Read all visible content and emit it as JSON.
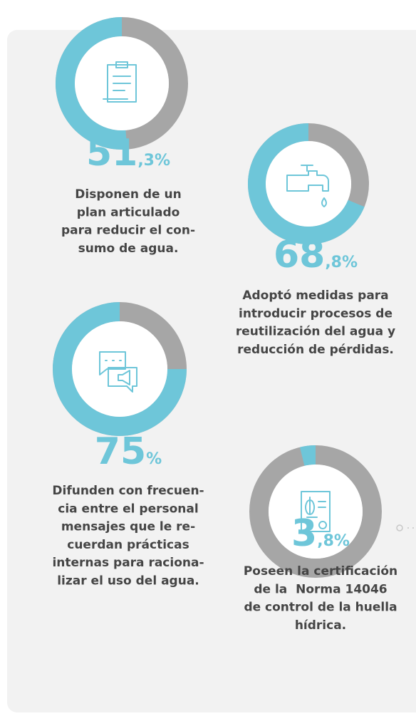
{
  "chart_data": [
    {
      "type": "donut",
      "value": 51.3,
      "value_label": "51,3%",
      "color": "#6ec6d9",
      "rest_color": "#a6a6a6",
      "caption": [
        "Disponen de un",
        "plan articulado",
        "para reducir el con-",
        "sumo de agua."
      ]
    },
    {
      "type": "donut",
      "value": 68.8,
      "value_label": "68,8%",
      "color": "#6ec6d9",
      "rest_color": "#a6a6a6",
      "caption": [
        "Adoptó medidas para",
        "introducir procesos de",
        "reutilización del agua y",
        "reducción de pérdidas."
      ]
    },
    {
      "type": "donut",
      "value": 75,
      "value_label": "75%",
      "color": "#6ec6d9",
      "rest_color": "#a6a6a6",
      "caption": [
        "Difunden con frecuen-",
        "cia entre el personal",
        "mensajes que le re-",
        "cuerdan prácticas",
        "internas para raciona-",
        "lizar el uso del agua."
      ]
    },
    {
      "type": "donut",
      "value": 3.8,
      "value_label": "3,8%",
      "color": "#6ec6d9",
      "rest_color": "#a6a6a6",
      "caption": [
        "Poseen la certificación",
        "de la  Norma 14046",
        "de control de la huella",
        "hídrica."
      ]
    }
  ]
}
